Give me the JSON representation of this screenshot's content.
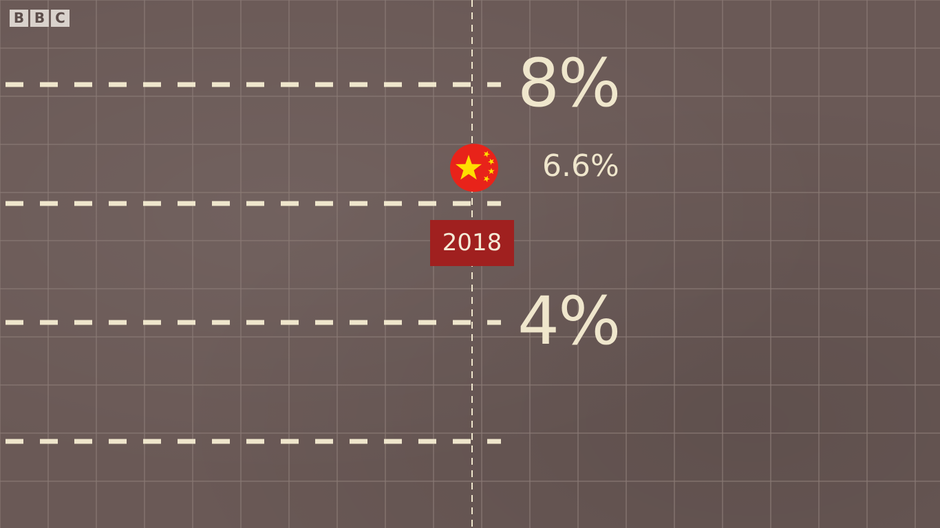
{
  "broadcaster_logo": [
    "B",
    "B",
    "C"
  ],
  "colors": {
    "background": "#6a5956",
    "grid": "#8a7a75",
    "dash": "#efe6cc",
    "year_box": "#a0201f",
    "text": "#efe6cc"
  },
  "chart_data": {
    "type": "scatter",
    "x_marker": "2018",
    "y_unit": "%",
    "ylim": [
      0,
      10
    ],
    "gridlines_y": [
      2,
      4,
      6,
      8
    ],
    "tick_labels": [
      {
        "value": 8,
        "label": "8%"
      },
      {
        "value": 4,
        "label": "4%"
      }
    ],
    "points": [
      {
        "icon": "china-flag-icon",
        "x": "2018",
        "y": 6.6,
        "label": "6.6%"
      }
    ],
    "grid": true
  }
}
